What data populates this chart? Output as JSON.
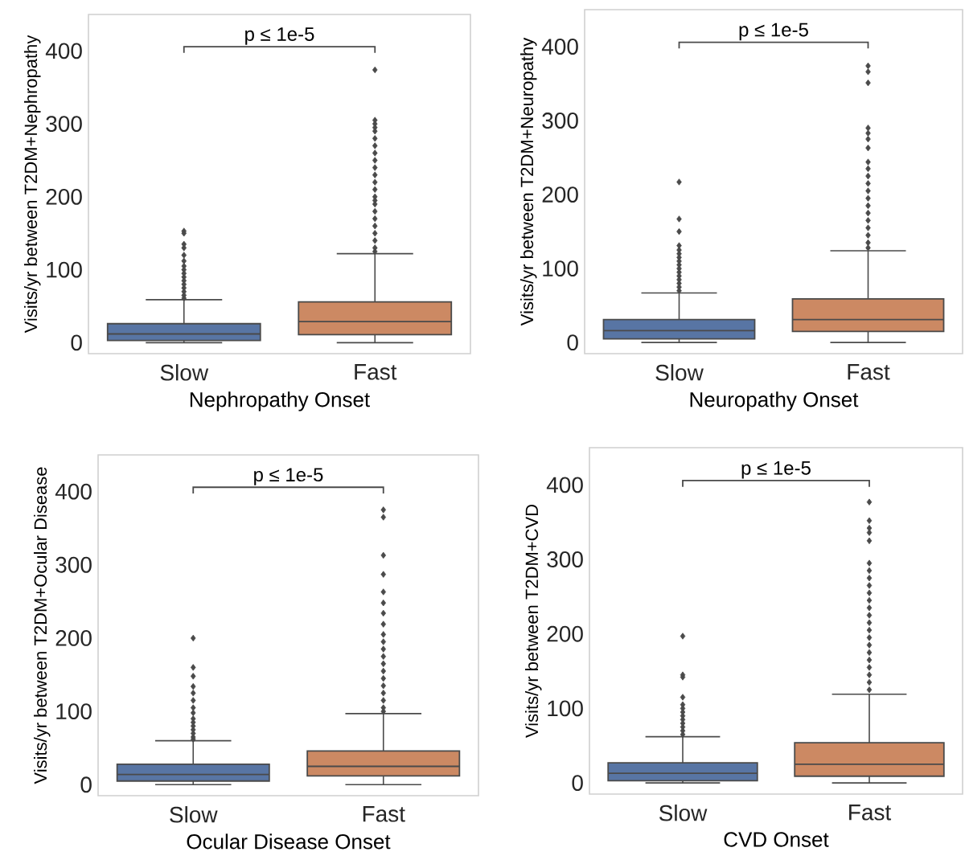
{
  "chart_data": [
    {
      "type": "box",
      "categories": [
        "Slow",
        "Fast"
      ],
      "xlabel": "Nephropathy Onset",
      "ylabel": "Visits/yr between T2DM+Nephropathy",
      "annotations": [
        "p ≤ 1e-5"
      ],
      "colors": [
        "#5875a4",
        "#cc8963"
      ],
      "ylim": [
        -15,
        450
      ],
      "yticks": [
        0,
        100,
        200,
        300,
        400
      ],
      "boxes": [
        {
          "low": 0,
          "q1": 3,
          "median": 12,
          "q3": 26,
          "high": 59,
          "outliers": [
            153,
            150,
            135,
            130,
            120,
            112,
            105,
            100,
            95,
            90,
            85,
            80,
            75,
            70,
            65,
            61
          ]
        },
        {
          "low": 0,
          "q1": 11,
          "median": 29,
          "q3": 56,
          "high": 122,
          "outliers": [
            374,
            305,
            300,
            295,
            290,
            280,
            270,
            260,
            250,
            240,
            230,
            220,
            210,
            200,
            195,
            190,
            180,
            170,
            160,
            150,
            140,
            130,
            125
          ]
        }
      ]
    },
    {
      "type": "box",
      "categories": [
        "Slow",
        "Fast"
      ],
      "xlabel": "Neuropathy Onset",
      "ylabel": "Visits/yr between T2DM+Neuropathy",
      "annotations": [
        "p ≤ 1e-5"
      ],
      "colors": [
        "#5875a4",
        "#cc8963"
      ],
      "ylim": [
        -15,
        450
      ],
      "yticks": [
        0,
        100,
        200,
        300,
        400
      ],
      "boxes": [
        {
          "low": 0,
          "q1": 5,
          "median": 16,
          "q3": 31,
          "high": 67,
          "outliers": [
            217,
            167,
            150,
            131,
            125,
            120,
            115,
            110,
            105,
            100,
            95,
            90,
            85,
            80,
            75,
            70
          ]
        },
        {
          "low": 0,
          "q1": 15,
          "median": 31,
          "q3": 59,
          "high": 124,
          "outliers": [
            374,
            366,
            351,
            290,
            283,
            275,
            263,
            244,
            235,
            225,
            215,
            205,
            195,
            185,
            175,
            165,
            155,
            145,
            135,
            128
          ]
        }
      ]
    },
    {
      "type": "box",
      "categories": [
        "Slow",
        "Fast"
      ],
      "xlabel": "Ocular Disease Onset",
      "ylabel": "Visits/yr between T2DM+Ocular Disease",
      "annotations": [
        "p ≤ 1e-5"
      ],
      "colors": [
        "#5875a4",
        "#cc8963"
      ],
      "ylim": [
        -15,
        450
      ],
      "yticks": [
        0,
        100,
        200,
        300,
        400
      ],
      "boxes": [
        {
          "low": 0,
          "q1": 5,
          "median": 14,
          "q3": 28,
          "high": 60,
          "outliers": [
            200,
            160,
            148,
            134,
            125,
            115,
            105,
            98,
            90,
            85,
            80,
            75,
            70,
            65,
            62
          ]
        },
        {
          "low": 0,
          "q1": 12,
          "median": 25,
          "q3": 46,
          "high": 97,
          "outliers": [
            375,
            365,
            313,
            287,
            263,
            248,
            234,
            219,
            205,
            195,
            185,
            175,
            165,
            155,
            145,
            135,
            125,
            115,
            105,
            100
          ]
        }
      ]
    },
    {
      "type": "box",
      "categories": [
        "Slow",
        "Fast"
      ],
      "xlabel": "CVD Onset",
      "ylabel": "Visits/yr between T2DM+CVD",
      "annotations": [
        "p ≤ 1e-5"
      ],
      "colors": [
        "#5875a4",
        "#cc8963"
      ],
      "ylim": [
        -15,
        450
      ],
      "yticks": [
        0,
        100,
        200,
        300,
        400
      ],
      "boxes": [
        {
          "low": 0,
          "q1": 3,
          "median": 13,
          "q3": 27,
          "high": 62,
          "outliers": [
            197,
            145,
            142,
            115,
            105,
            100,
            95,
            90,
            85,
            80,
            75,
            70,
            65
          ]
        },
        {
          "low": 0,
          "q1": 9,
          "median": 25,
          "q3": 54,
          "high": 119,
          "outliers": [
            377,
            352,
            342,
            336,
            325,
            295,
            285,
            275,
            265,
            255,
            245,
            235,
            225,
            215,
            205,
            195,
            185,
            175,
            165,
            155,
            145,
            135,
            125
          ]
        }
      ]
    }
  ]
}
